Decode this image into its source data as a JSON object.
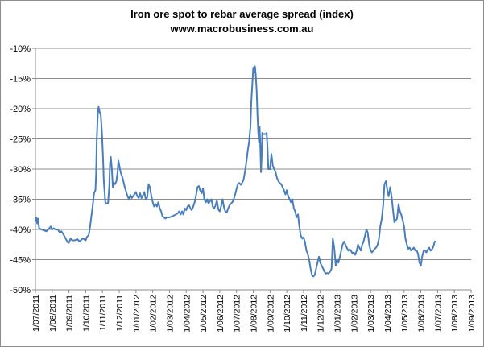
{
  "chart_data": {
    "type": "line",
    "title": "Iron ore spot to rebar average spread (index)",
    "subtitle": "www.macrobusiness.com.au",
    "xlabel": "",
    "ylabel": "",
    "ylim": [
      -50,
      -10
    ],
    "grid": true,
    "legend": "none",
    "y_ticks": [
      "-10%",
      "-15%",
      "-20%",
      "-25%",
      "-30%",
      "-35%",
      "-40%",
      "-45%",
      "-50%"
    ],
    "y_tick_values": [
      -10,
      -15,
      -20,
      -25,
      -30,
      -35,
      -40,
      -45,
      -50
    ],
    "x_ticks": [
      "1/07/2011",
      "1/08/2011",
      "1/09/2011",
      "1/10/2011",
      "1/11/2011",
      "1/12/2011",
      "1/01/2012",
      "1/02/2012",
      "1/03/2012",
      "1/04/2012",
      "1/05/2012",
      "1/06/2012",
      "1/07/2012",
      "1/08/2012",
      "1/09/2012",
      "1/10/2012",
      "1/11/2012",
      "1/12/2012",
      "1/01/2013",
      "1/02/2013",
      "1/03/2013",
      "1/04/2013",
      "1/05/2013",
      "1/06/2013",
      "1/07/2013",
      "1/08/2013",
      "1/09/2013"
    ],
    "colors": {
      "line": "#4a7ebb",
      "grid": "#8c8c8c",
      "axis": "#8c8c8c"
    },
    "series": [
      {
        "name": "Iron ore spot to rebar average spread",
        "x_unit": "months since 1/07/2011",
        "points": [
          [
            0.0,
            -38.5
          ],
          [
            0.05,
            -38.0
          ],
          [
            0.1,
            -39.0
          ],
          [
            0.15,
            -38.2
          ],
          [
            0.22,
            -39.8
          ],
          [
            0.35,
            -40.0
          ],
          [
            0.5,
            -40.1
          ],
          [
            0.65,
            -40.3
          ],
          [
            0.8,
            -39.9
          ],
          [
            0.92,
            -39.5
          ],
          [
            1.0,
            -40.0
          ],
          [
            1.08,
            -39.8
          ],
          [
            1.2,
            -40.0
          ],
          [
            1.33,
            -40.0
          ],
          [
            1.45,
            -40.5
          ],
          [
            1.55,
            -40.3
          ],
          [
            1.67,
            -40.8
          ],
          [
            1.8,
            -41.5
          ],
          [
            1.92,
            -42.1
          ],
          [
            2.0,
            -42.2
          ],
          [
            2.1,
            -41.5
          ],
          [
            2.2,
            -41.8
          ],
          [
            2.35,
            -41.8
          ],
          [
            2.5,
            -41.6
          ],
          [
            2.65,
            -42.0
          ],
          [
            2.8,
            -41.5
          ],
          [
            2.9,
            -41.6
          ],
          [
            3.0,
            -41.8
          ],
          [
            3.08,
            -41.2
          ],
          [
            3.17,
            -41.0
          ],
          [
            3.25,
            -39.8
          ],
          [
            3.33,
            -38.0
          ],
          [
            3.42,
            -36.0
          ],
          [
            3.5,
            -34.0
          ],
          [
            3.58,
            -33.5
          ],
          [
            3.62,
            -31.0
          ],
          [
            3.66,
            -25.0
          ],
          [
            3.72,
            -21.0
          ],
          [
            3.77,
            -19.7
          ],
          [
            3.83,
            -20.5
          ],
          [
            3.9,
            -21.0
          ],
          [
            3.97,
            -24.0
          ],
          [
            4.03,
            -28.0
          ],
          [
            4.08,
            -32.0
          ],
          [
            4.17,
            -35.5
          ],
          [
            4.25,
            -35.7
          ],
          [
            4.33,
            -35.7
          ],
          [
            4.4,
            -33.0
          ],
          [
            4.45,
            -29.0
          ],
          [
            4.5,
            -28.0
          ],
          [
            4.56,
            -30.0
          ],
          [
            4.62,
            -33.0
          ],
          [
            4.67,
            -32.3
          ],
          [
            4.75,
            -32.5
          ],
          [
            4.83,
            -32.0
          ],
          [
            4.9,
            -30.5
          ],
          [
            4.95,
            -28.6
          ],
          [
            5.0,
            -29.3
          ],
          [
            5.08,
            -30.5
          ],
          [
            5.17,
            -31.2
          ],
          [
            5.25,
            -32.0
          ],
          [
            5.33,
            -33.0
          ],
          [
            5.42,
            -33.8
          ],
          [
            5.5,
            -34.5
          ],
          [
            5.58,
            -35.0
          ],
          [
            5.67,
            -34.3
          ],
          [
            5.75,
            -34.8
          ],
          [
            5.83,
            -34.5
          ],
          [
            6.0,
            -33.8
          ],
          [
            6.08,
            -34.5
          ],
          [
            6.17,
            -34.8
          ],
          [
            6.25,
            -34.0
          ],
          [
            6.33,
            -34.8
          ],
          [
            6.42,
            -34.3
          ],
          [
            6.5,
            -33.8
          ],
          [
            6.58,
            -35.0
          ],
          [
            6.67,
            -34.7
          ],
          [
            6.75,
            -32.5
          ],
          [
            6.83,
            -33.0
          ],
          [
            6.92,
            -34.5
          ],
          [
            7.0,
            -35.5
          ],
          [
            7.08,
            -36.2
          ],
          [
            7.17,
            -35.8
          ],
          [
            7.25,
            -36.2
          ],
          [
            7.33,
            -35.5
          ],
          [
            7.42,
            -36.5
          ],
          [
            7.5,
            -37.0
          ],
          [
            7.58,
            -37.8
          ],
          [
            7.67,
            -38.0
          ],
          [
            7.75,
            -38.2
          ],
          [
            7.83,
            -38.0
          ],
          [
            8.0,
            -38.0
          ],
          [
            8.17,
            -37.8
          ],
          [
            8.33,
            -37.6
          ],
          [
            8.5,
            -37.3
          ],
          [
            8.58,
            -37.0
          ],
          [
            8.67,
            -37.5
          ],
          [
            8.75,
            -37.0
          ],
          [
            8.83,
            -37.5
          ],
          [
            8.92,
            -36.5
          ],
          [
            9.0,
            -36.8
          ],
          [
            9.08,
            -36.2
          ],
          [
            9.17,
            -36.0
          ],
          [
            9.25,
            -36.5
          ],
          [
            9.33,
            -36.8
          ],
          [
            9.42,
            -36.2
          ],
          [
            9.5,
            -35.5
          ],
          [
            9.58,
            -34.5
          ],
          [
            9.67,
            -33.0
          ],
          [
            9.75,
            -32.8
          ],
          [
            9.83,
            -33.5
          ],
          [
            9.92,
            -34.0
          ],
          [
            10.0,
            -33.2
          ],
          [
            10.08,
            -35.0
          ],
          [
            10.17,
            -35.5
          ],
          [
            10.25,
            -35.0
          ],
          [
            10.33,
            -35.7
          ],
          [
            10.42,
            -35.3
          ],
          [
            10.5,
            -35.0
          ],
          [
            10.58,
            -36.2
          ],
          [
            10.67,
            -36.5
          ],
          [
            10.75,
            -36.0
          ],
          [
            10.83,
            -35.2
          ],
          [
            10.92,
            -36.7
          ],
          [
            11.0,
            -37.0
          ],
          [
            11.08,
            -36.2
          ],
          [
            11.17,
            -35.0
          ],
          [
            11.25,
            -36.3
          ],
          [
            11.33,
            -37.0
          ],
          [
            11.42,
            -37.2
          ],
          [
            11.5,
            -36.5
          ],
          [
            11.58,
            -36.0
          ],
          [
            11.67,
            -35.7
          ],
          [
            11.75,
            -35.5
          ],
          [
            11.83,
            -35.0
          ],
          [
            11.92,
            -34.2
          ],
          [
            12.0,
            -33.3
          ],
          [
            12.08,
            -32.5
          ],
          [
            12.17,
            -32.3
          ],
          [
            12.25,
            -32.6
          ],
          [
            12.33,
            -32.3
          ],
          [
            12.42,
            -31.8
          ],
          [
            12.5,
            -30.5
          ],
          [
            12.58,
            -29.0
          ],
          [
            12.67,
            -27.0
          ],
          [
            12.75,
            -25.5
          ],
          [
            12.83,
            -23.0
          ],
          [
            12.88,
            -19.0
          ],
          [
            12.94,
            -16.0
          ],
          [
            13.0,
            -13.2
          ],
          [
            13.05,
            -14.0
          ],
          [
            13.1,
            -13.0
          ],
          [
            13.15,
            -14.5
          ],
          [
            13.2,
            -17.0
          ],
          [
            13.25,
            -21.0
          ],
          [
            13.3,
            -24.0
          ],
          [
            13.34,
            -25.5
          ],
          [
            13.38,
            -23.0
          ],
          [
            13.42,
            -26.0
          ],
          [
            13.46,
            -30.5
          ],
          [
            13.5,
            -28.0
          ],
          [
            13.54,
            -24.0
          ],
          [
            13.58,
            -24.2
          ],
          [
            13.67,
            -24.2
          ],
          [
            13.75,
            -24.2
          ],
          [
            13.8,
            -24.0
          ],
          [
            13.85,
            -26.5
          ],
          [
            13.9,
            -30.0
          ],
          [
            14.0,
            -30.0
          ],
          [
            14.08,
            -27.5
          ],
          [
            14.17,
            -29.5
          ],
          [
            14.25,
            -30.0
          ],
          [
            14.33,
            -30.5
          ],
          [
            14.42,
            -31.5
          ],
          [
            14.5,
            -32.0
          ],
          [
            14.58,
            -32.3
          ],
          [
            14.67,
            -32.5
          ],
          [
            14.75,
            -33.0
          ],
          [
            14.83,
            -33.5
          ],
          [
            14.92,
            -34.2
          ],
          [
            15.0,
            -33.5
          ],
          [
            15.08,
            -34.5
          ],
          [
            15.17,
            -35.0
          ],
          [
            15.25,
            -35.5
          ],
          [
            15.33,
            -35.0
          ],
          [
            15.42,
            -36.5
          ],
          [
            15.5,
            -37.0
          ],
          [
            15.58,
            -38.0
          ],
          [
            15.67,
            -37.5
          ],
          [
            15.75,
            -39.5
          ],
          [
            15.83,
            -41.0
          ],
          [
            15.92,
            -41.5
          ],
          [
            16.0,
            -41.3
          ],
          [
            16.08,
            -42.0
          ],
          [
            16.17,
            -43.5
          ],
          [
            16.25,
            -44.0
          ],
          [
            16.33,
            -45.0
          ],
          [
            16.42,
            -46.5
          ],
          [
            16.5,
            -47.5
          ],
          [
            16.58,
            -47.8
          ],
          [
            16.67,
            -47.5
          ],
          [
            16.75,
            -46.5
          ],
          [
            16.83,
            -45.5
          ],
          [
            16.92,
            -44.5
          ],
          [
            17.0,
            -45.5
          ],
          [
            17.08,
            -46.0
          ],
          [
            17.17,
            -46.5
          ],
          [
            17.25,
            -47.0
          ],
          [
            17.33,
            -47.3
          ],
          [
            17.42,
            -47.2
          ],
          [
            17.5,
            -47.3
          ],
          [
            17.58,
            -47.0
          ],
          [
            17.67,
            -46.5
          ],
          [
            17.75,
            -41.5
          ],
          [
            17.83,
            -43.0
          ],
          [
            17.92,
            -46.0
          ],
          [
            18.0,
            -45.0
          ],
          [
            18.08,
            -45.5
          ],
          [
            18.17,
            -44.5
          ],
          [
            18.25,
            -43.5
          ],
          [
            18.33,
            -42.5
          ],
          [
            18.42,
            -42.0
          ],
          [
            18.5,
            -42.5
          ],
          [
            18.58,
            -43.0
          ],
          [
            18.67,
            -43.5
          ],
          [
            18.75,
            -43.3
          ],
          [
            18.83,
            -43.5
          ],
          [
            18.92,
            -44.0
          ],
          [
            19.0,
            -43.8
          ],
          [
            19.08,
            -44.2
          ],
          [
            19.17,
            -43.5
          ],
          [
            19.25,
            -42.5
          ],
          [
            19.33,
            -43.0
          ],
          [
            19.42,
            -43.5
          ],
          [
            19.5,
            -42.5
          ],
          [
            19.58,
            -42.0
          ],
          [
            19.67,
            -41.0
          ],
          [
            19.75,
            -40.0
          ],
          [
            19.83,
            -40.5
          ],
          [
            19.92,
            -42.5
          ],
          [
            20.0,
            -43.5
          ],
          [
            20.08,
            -43.8
          ],
          [
            20.17,
            -43.5
          ],
          [
            20.25,
            -43.2
          ],
          [
            20.33,
            -43.0
          ],
          [
            20.42,
            -42.5
          ],
          [
            20.5,
            -41.5
          ],
          [
            20.58,
            -39.5
          ],
          [
            20.67,
            -38.2
          ],
          [
            20.75,
            -36.0
          ],
          [
            20.83,
            -32.5
          ],
          [
            20.92,
            -32.0
          ],
          [
            21.0,
            -33.5
          ],
          [
            21.08,
            -34.5
          ],
          [
            21.17,
            -33.0
          ],
          [
            21.25,
            -34.5
          ],
          [
            21.33,
            -36.5
          ],
          [
            21.42,
            -38.8
          ],
          [
            21.5,
            -38.5
          ],
          [
            21.58,
            -38.2
          ],
          [
            21.67,
            -35.8
          ],
          [
            21.75,
            -37.0
          ],
          [
            21.83,
            -37.5
          ],
          [
            21.92,
            -38.5
          ],
          [
            22.0,
            -39.5
          ],
          [
            22.08,
            -41.5
          ],
          [
            22.17,
            -42.5
          ],
          [
            22.25,
            -43.2
          ],
          [
            22.33,
            -43.0
          ],
          [
            22.42,
            -43.5
          ],
          [
            22.5,
            -43.3
          ],
          [
            22.58,
            -43.0
          ],
          [
            22.67,
            -43.5
          ],
          [
            22.75,
            -43.5
          ],
          [
            22.83,
            -44.0
          ],
          [
            22.92,
            -45.5
          ],
          [
            23.0,
            -46.0
          ],
          [
            23.08,
            -44.5
          ],
          [
            23.17,
            -43.5
          ],
          [
            23.25,
            -43.5
          ],
          [
            23.33,
            -43.8
          ],
          [
            23.42,
            -43.3
          ],
          [
            23.5,
            -43.0
          ],
          [
            23.58,
            -43.5
          ],
          [
            23.67,
            -43.3
          ],
          [
            23.75,
            -42.8
          ],
          [
            23.83,
            -42.0
          ],
          [
            23.88,
            -42.0
          ]
        ]
      }
    ]
  }
}
